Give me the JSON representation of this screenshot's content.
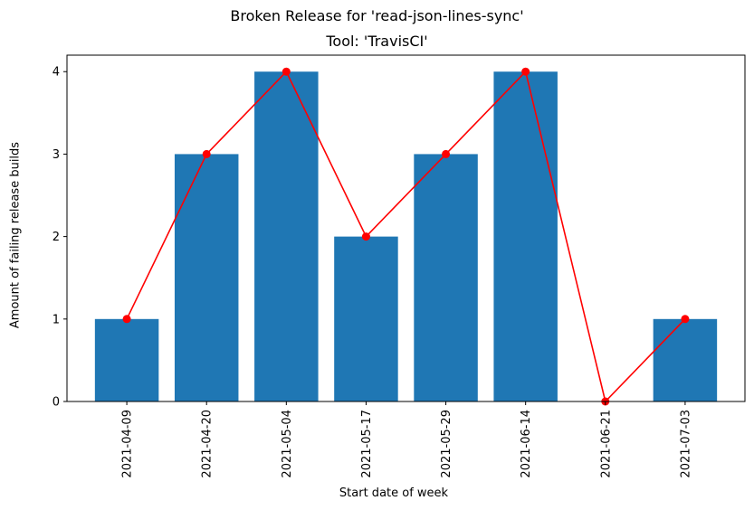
{
  "chart_data": {
    "type": "bar",
    "suptitle": "Broken Release for 'read-json-lines-sync'",
    "title": "Tool: 'TravisCI'",
    "xlabel": "Start date of week",
    "ylabel": "Amount of failing release builds",
    "categories": [
      "2021-04-09",
      "2021-04-20",
      "2021-05-04",
      "2021-05-17",
      "2021-05-29",
      "2021-06-14",
      "2021-06-21",
      "2021-07-03"
    ],
    "series": [
      {
        "type": "bar",
        "values": [
          1,
          3,
          4,
          2,
          3,
          4,
          0,
          1
        ]
      },
      {
        "type": "line",
        "values": [
          1,
          3,
          4,
          2,
          3,
          4,
          0,
          1
        ]
      }
    ],
    "ylim": [
      0,
      4.2
    ],
    "yticks": [
      0,
      1,
      2,
      3,
      4
    ],
    "grid": false,
    "colors": {
      "bar": "#1f77b4",
      "line": "#ff0000",
      "marker": "#ff0000"
    }
  }
}
